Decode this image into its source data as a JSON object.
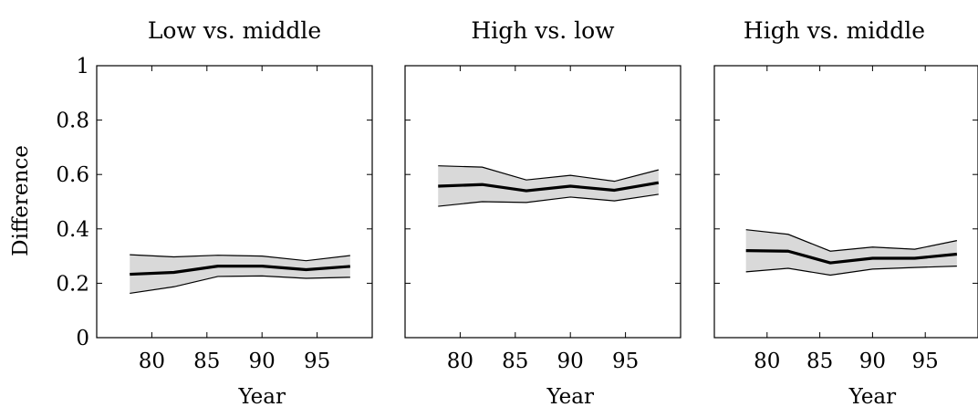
{
  "figure": {
    "ylabel": "Difference"
  },
  "chart_data": [
    {
      "type": "line",
      "title": "Low vs. middle",
      "xlabel": "Year",
      "ylabel": "Difference",
      "x": [
        78,
        82,
        86,
        90,
        94,
        98
      ],
      "xticks": [
        80,
        85,
        90,
        95
      ],
      "yticks": [
        0,
        0.2,
        0.4,
        0.6,
        0.8,
        1
      ],
      "ytick_labels": [
        "0",
        "0.2",
        "0.4",
        "0.6",
        "0.8",
        "1"
      ],
      "xlim": [
        75,
        100
      ],
      "ylim": [
        0,
        1
      ],
      "series": [
        {
          "values": [
            0.233,
            0.24,
            0.263,
            0.263,
            0.25,
            0.262
          ],
          "lower": [
            0.163,
            0.187,
            0.225,
            0.227,
            0.218,
            0.222
          ],
          "upper": [
            0.305,
            0.297,
            0.303,
            0.3,
            0.283,
            0.302
          ]
        }
      ],
      "grid": false
    },
    {
      "type": "line",
      "title": "High vs. low",
      "xlabel": "Year",
      "x": [
        78,
        82,
        86,
        90,
        94,
        98
      ],
      "xticks": [
        80,
        85,
        90,
        95
      ],
      "yticks": [
        0,
        0.2,
        0.4,
        0.6,
        0.8,
        1
      ],
      "xlim": [
        75,
        100
      ],
      "ylim": [
        0,
        1
      ],
      "series": [
        {
          "values": [
            0.557,
            0.563,
            0.54,
            0.557,
            0.542,
            0.57
          ],
          "lower": [
            0.483,
            0.5,
            0.497,
            0.517,
            0.503,
            0.527
          ],
          "upper": [
            0.632,
            0.627,
            0.58,
            0.597,
            0.575,
            0.617
          ]
        }
      ],
      "grid": false
    },
    {
      "type": "line",
      "title": "High vs. middle",
      "xlabel": "Year",
      "x": [
        78,
        82,
        86,
        90,
        94,
        98
      ],
      "xticks": [
        80,
        85,
        90,
        95
      ],
      "yticks": [
        0,
        0.2,
        0.4,
        0.6,
        0.8,
        1
      ],
      "xlim": [
        75,
        100
      ],
      "ylim": [
        0,
        1
      ],
      "series": [
        {
          "values": [
            0.32,
            0.318,
            0.275,
            0.292,
            0.292,
            0.307
          ],
          "lower": [
            0.242,
            0.255,
            0.23,
            0.252,
            0.258,
            0.263
          ],
          "upper": [
            0.397,
            0.38,
            0.318,
            0.333,
            0.325,
            0.357
          ]
        }
      ],
      "grid": false
    }
  ]
}
